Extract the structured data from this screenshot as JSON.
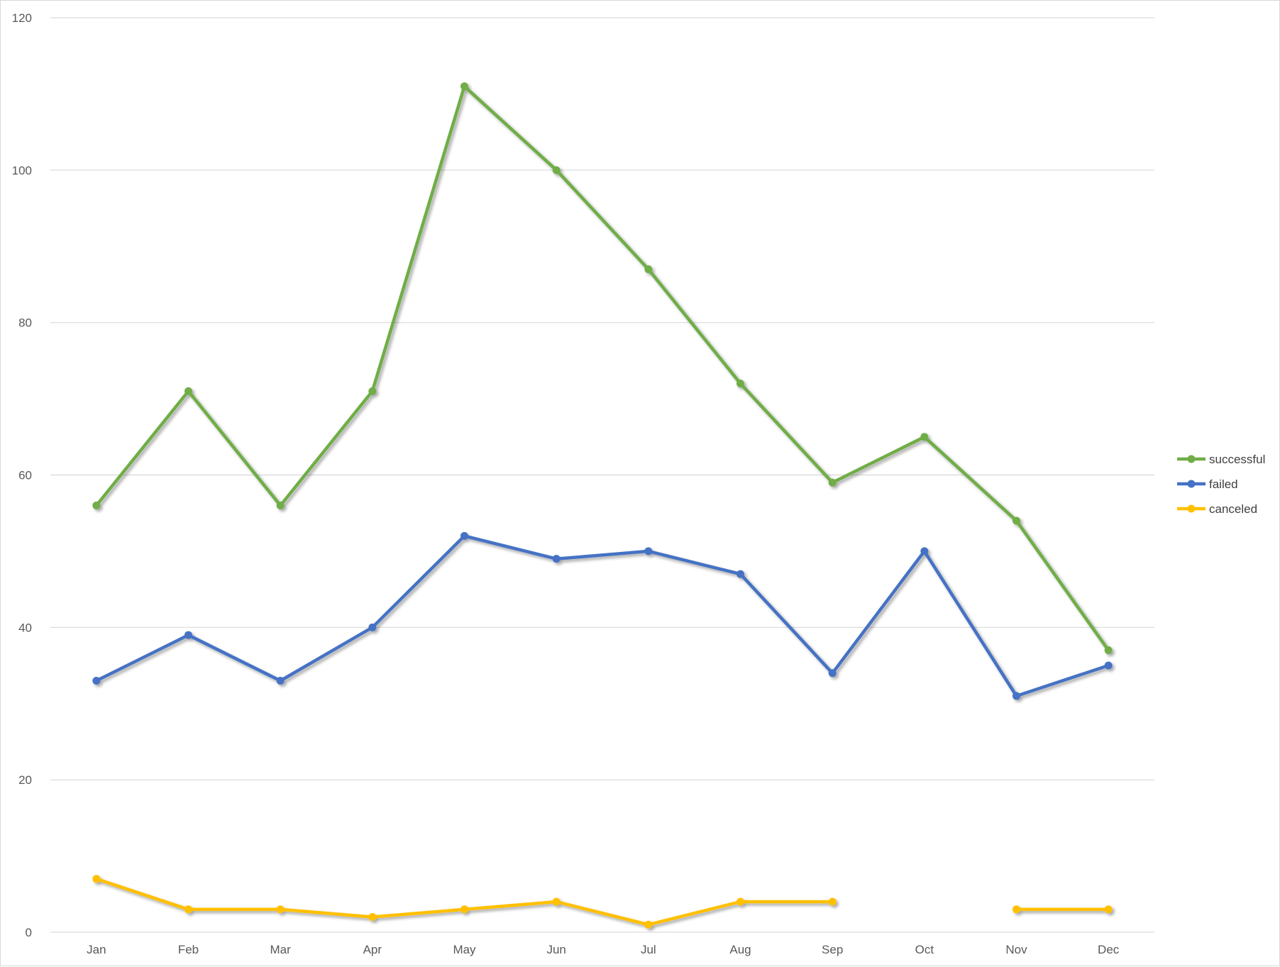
{
  "chart_data": {
    "type": "line",
    "categories": [
      "Jan",
      "Feb",
      "Mar",
      "Apr",
      "May",
      "Jun",
      "Jul",
      "Aug",
      "Sep",
      "Oct",
      "Nov",
      "Dec"
    ],
    "series": [
      {
        "name": "successful",
        "color": "#70ad47",
        "values": [
          56,
          71,
          56,
          71,
          111,
          100,
          87,
          72,
          59,
          65,
          54,
          37
        ]
      },
      {
        "name": "failed",
        "color": "#4472c4",
        "values": [
          33,
          39,
          33,
          40,
          52,
          49,
          50,
          47,
          34,
          50,
          31,
          35
        ]
      },
      {
        "name": "canceled",
        "color": "#ffc000",
        "values": [
          7,
          3,
          3,
          2,
          3,
          4,
          1,
          4,
          4,
          null,
          3,
          3
        ]
      }
    ],
    "yticks": [
      "0",
      "20",
      "40",
      "60",
      "80",
      "100",
      "120"
    ],
    "ylim": [
      0,
      120
    ],
    "title": "",
    "xlabel": "",
    "ylabel": "",
    "grid": "horizontal",
    "legend": "right"
  }
}
